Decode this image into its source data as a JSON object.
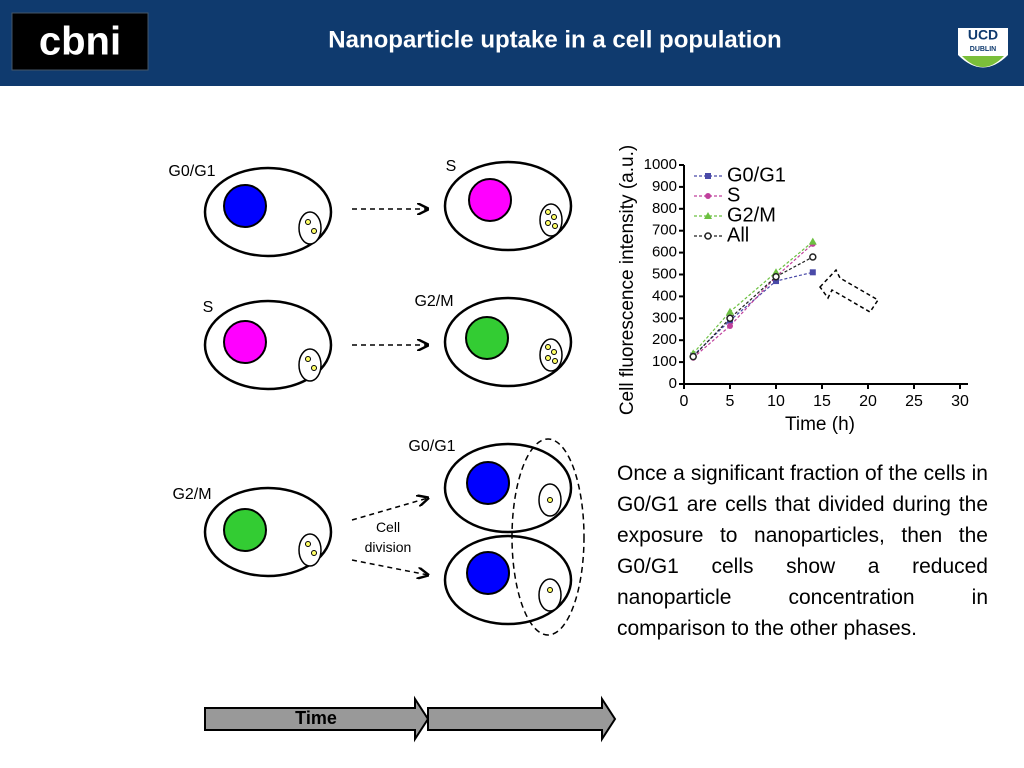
{
  "header": {
    "logo": "cbni",
    "title": "Nanoparticle uptake in a cell population",
    "university": "UCD",
    "university_sub": "DUBLIN"
  },
  "diagram": {
    "phase_labels": [
      "G0/G1",
      "S",
      "S",
      "G2/M",
      "G2/M",
      "G0/G1"
    ],
    "division_label": "Cell division",
    "time_label": "Time"
  },
  "text": "Once a significant fraction of the cells in G0/G1 are cells that divided during the exposure to nanoparticles, then the G0/G1 cells show a reduced nanoparticle concentration in comparison to the other phases.",
  "chart_data": {
    "type": "line",
    "x_label": "Time (h)",
    "y_label": "Cell fluorescence intensity (a.u.)",
    "x": [
      1,
      5,
      10,
      14
    ],
    "series": [
      {
        "name": "G0/G1",
        "color": "#4a4aa8",
        "marker": "square",
        "values": [
          130,
          290,
          470,
          510
        ]
      },
      {
        "name": "S",
        "color": "#c0409c",
        "marker": "circle",
        "values": [
          120,
          265,
          490,
          640
        ]
      },
      {
        "name": "G2/M",
        "color": "#6cc040",
        "marker": "triangle",
        "values": [
          140,
          330,
          510,
          650
        ]
      },
      {
        "name": "All",
        "color": "#222222",
        "marker": "open-circle",
        "values": [
          125,
          300,
          490,
          580
        ]
      }
    ],
    "xlim": [
      0,
      30
    ],
    "xticks": [
      0,
      5,
      10,
      15,
      20,
      25,
      30
    ],
    "ylim": [
      0,
      1000
    ],
    "yticks": [
      0,
      100,
      200,
      300,
      400,
      500,
      600,
      700,
      800,
      900,
      1000
    ],
    "legend": "upper-left"
  }
}
